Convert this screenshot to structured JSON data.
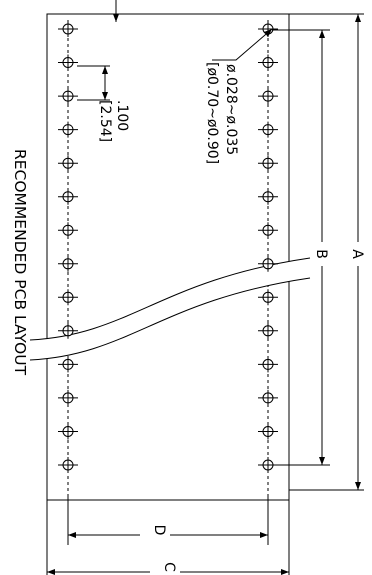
{
  "labels": {
    "title": "RECOMMENDED  PCB  LAYOUT",
    "pitch_in": ".100",
    "pitch_mm": "[2.54]",
    "hole_in": "ø.028~ø.035",
    "hole_mm": "[ø0.70~ø0.90]",
    "dim_a": "A",
    "dim_b": "B",
    "dim_c": "C",
    "dim_d": "D"
  },
  "pins_per_row": 14,
  "colors": {
    "line": "#000000",
    "background": "#ffffff"
  }
}
